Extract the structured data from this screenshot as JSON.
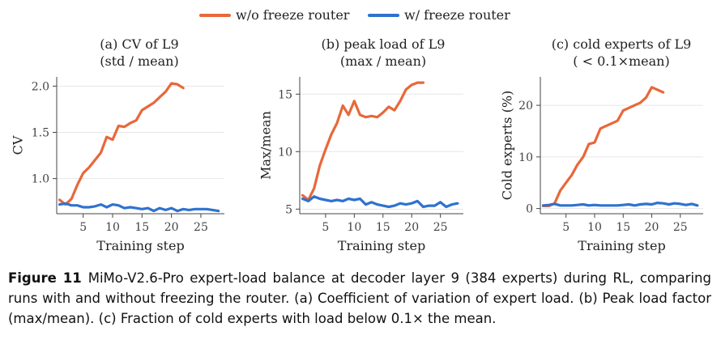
{
  "chart_data": {
    "type": "line",
    "legend": {
      "placement": "top-center",
      "entries": [
        {
          "name": "w/o freeze router",
          "color": "#e8683a"
        },
        {
          "name": "w/ freeze router",
          "color": "#2f72cf"
        }
      ]
    },
    "panels": [
      {
        "title_line1": "(a) CV of L9",
        "title_line2": "(std / mean)",
        "xlabel": "Training step",
        "ylabel": "CV",
        "xlim": [
          0.5,
          29
        ],
        "ylim": [
          0.62,
          2.1
        ],
        "xticks": [
          5,
          10,
          15,
          20,
          25
        ],
        "yticks": [
          1.0,
          1.5,
          2.0
        ],
        "ytick_labels": [
          "1.0",
          "1.5",
          "2.0"
        ],
        "grid": "horizontal",
        "series": [
          {
            "name": "w/o freeze router",
            "color": "#e8683a",
            "x": [
              1,
              2,
              3,
              4,
              5,
              6,
              7,
              8,
              9,
              10,
              11,
              12,
              13,
              14,
              15,
              16,
              17,
              18,
              19,
              20,
              21,
              22
            ],
            "y": [
              0.77,
              0.72,
              0.78,
              0.93,
              1.06,
              1.12,
              1.2,
              1.28,
              1.45,
              1.42,
              1.57,
              1.56,
              1.6,
              1.63,
              1.74,
              1.78,
              1.82,
              1.88,
              1.94,
              2.03,
              2.02,
              1.98
            ]
          },
          {
            "name": "w/ freeze router",
            "color": "#2f72cf",
            "x": [
              1,
              2,
              3,
              4,
              5,
              6,
              7,
              8,
              9,
              10,
              11,
              12,
              13,
              14,
              15,
              16,
              17,
              18,
              19,
              20,
              21,
              22,
              23,
              24,
              25,
              26,
              27,
              28
            ],
            "y": [
              0.72,
              0.73,
              0.71,
              0.71,
              0.69,
              0.69,
              0.7,
              0.72,
              0.69,
              0.72,
              0.71,
              0.68,
              0.69,
              0.68,
              0.67,
              0.68,
              0.65,
              0.68,
              0.66,
              0.68,
              0.65,
              0.67,
              0.66,
              0.67,
              0.67,
              0.67,
              0.66,
              0.65
            ]
          }
        ]
      },
      {
        "title_line1": "(b) peak load of L9",
        "title_line2": "(max / mean)",
        "xlabel": "Training step",
        "ylabel": "Max/mean",
        "xlim": [
          0.5,
          29
        ],
        "ylim": [
          4.6,
          16.5
        ],
        "xticks": [
          5,
          10,
          15,
          20,
          25
        ],
        "yticks": [
          5,
          10,
          15
        ],
        "ytick_labels": [
          "5",
          "10",
          "15"
        ],
        "grid": "horizontal",
        "series": [
          {
            "name": "w/o freeze router",
            "color": "#e8683a",
            "x": [
              1,
              2,
              3,
              4,
              5,
              6,
              7,
              8,
              9,
              10,
              11,
              12,
              13,
              14,
              15,
              16,
              17,
              18,
              19,
              20,
              21,
              22
            ],
            "y": [
              6.2,
              5.8,
              6.8,
              8.8,
              10.2,
              11.5,
              12.5,
              14.0,
              13.2,
              14.4,
              13.2,
              13.0,
              13.1,
              13.0,
              13.4,
              13.9,
              13.6,
              14.4,
              15.4,
              15.8,
              16.0,
              16.0
            ]
          },
          {
            "name": "w/ freeze router",
            "color": "#2f72cf",
            "x": [
              1,
              2,
              3,
              4,
              5,
              6,
              7,
              8,
              9,
              10,
              11,
              12,
              13,
              14,
              15,
              16,
              17,
              18,
              19,
              20,
              21,
              22,
              23,
              24,
              25,
              26,
              27,
              28
            ],
            "y": [
              5.9,
              5.7,
              6.1,
              5.9,
              5.8,
              5.7,
              5.8,
              5.7,
              5.9,
              5.8,
              5.9,
              5.4,
              5.6,
              5.4,
              5.3,
              5.2,
              5.3,
              5.5,
              5.4,
              5.5,
              5.7,
              5.2,
              5.3,
              5.3,
              5.6,
              5.2,
              5.4,
              5.5
            ]
          }
        ]
      },
      {
        "title_line1": "(c) cold experts of L9",
        "title_line2": "( < 0.1×mean)",
        "xlabel": "Training step",
        "ylabel": "Cold experts (%)",
        "xlim": [
          0.5,
          29
        ],
        "ylim": [
          -1.0,
          25.5
        ],
        "xticks": [
          5,
          10,
          15,
          20,
          25
        ],
        "yticks": [
          0,
          10,
          20
        ],
        "ytick_labels": [
          "0",
          "10",
          "20"
        ],
        "grid": "horizontal",
        "series": [
          {
            "name": "w/o freeze router",
            "color": "#e8683a",
            "x": [
              1,
              2,
              3,
              4,
              5,
              6,
              7,
              8,
              9,
              10,
              11,
              12,
              13,
              14,
              15,
              16,
              17,
              18,
              19,
              20,
              21,
              22
            ],
            "y": [
              0.5,
              0.5,
              1.0,
              3.5,
              5.0,
              6.5,
              8.5,
              10.0,
              12.5,
              12.8,
              15.5,
              16.0,
              16.5,
              17.0,
              19.0,
              19.5,
              20.0,
              20.5,
              21.5,
              23.5,
              23.0,
              22.5
            ]
          },
          {
            "name": "w/ freeze router",
            "color": "#2f72cf",
            "x": [
              1,
              2,
              3,
              4,
              5,
              6,
              7,
              8,
              9,
              10,
              11,
              12,
              13,
              14,
              15,
              16,
              17,
              18,
              19,
              20,
              21,
              22,
              23,
              24,
              25,
              26,
              27,
              28
            ],
            "y": [
              0.6,
              0.7,
              0.9,
              0.6,
              0.6,
              0.6,
              0.7,
              0.8,
              0.6,
              0.7,
              0.6,
              0.6,
              0.6,
              0.6,
              0.7,
              0.8,
              0.6,
              0.8,
              0.9,
              0.8,
              1.1,
              1.0,
              0.8,
              1.0,
              0.9,
              0.7,
              0.9,
              0.6
            ]
          }
        ]
      }
    ]
  },
  "caption": {
    "label": "Figure 11",
    "text": "MiMo-V2.6-Pro expert-load balance at decoder layer 9 (384 experts) during RL, comparing runs with and without freezing the router. (a) Coefficient of variation of expert load. (b) Peak load factor (max/mean). (c) Fraction of cold experts with load below 0.1× the mean."
  }
}
